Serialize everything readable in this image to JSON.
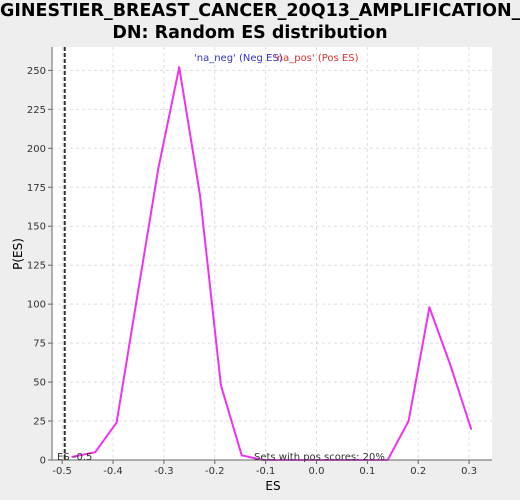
{
  "chart_data": {
    "type": "line",
    "title_line1": "GINESTIER_BREAST_CANCER_20Q13_AMPLIFICATION_",
    "title_line2": "DN: Random ES distribution",
    "xlabel": "ES",
    "ylabel": "P(ES)",
    "xlim": [
      -0.52,
      0.345
    ],
    "ylim": [
      0,
      265
    ],
    "x_ticks": [
      -0.5,
      -0.4,
      -0.3,
      -0.2,
      -0.1,
      0.0,
      0.1,
      0.2,
      0.3
    ],
    "x_tick_labels": [
      "-0.5",
      "-0.4",
      "-0.3",
      "-0.2",
      "-0.1",
      "0.0",
      "0.1",
      "0.2",
      "0.3"
    ],
    "y_ticks": [
      0,
      25,
      50,
      75,
      100,
      125,
      150,
      175,
      200,
      225,
      250
    ],
    "y_tick_labels": [
      "0",
      "25",
      "50",
      "75",
      "100",
      "125",
      "150",
      "175",
      "200",
      "225",
      "250"
    ],
    "grid": true,
    "legend": {
      "neg_label": "'na_neg' (Neg ES)",
      "pos_label": "'na_pos' (Pos ES)",
      "neg_color": "#3333cc",
      "pos_color": "#dd3333",
      "placement": "top-center"
    },
    "series": [
      {
        "color": "#ee33ee",
        "x": [
          -0.48,
          -0.435,
          -0.393,
          -0.352,
          -0.311,
          -0.27,
          -0.229,
          -0.188,
          -0.147,
          -0.106,
          -0.065,
          -0.024,
          0.017,
          0.058,
          0.099,
          0.14,
          0.181,
          0.222,
          0.263,
          0.304
        ],
        "y": [
          2,
          5,
          24,
          106,
          187,
          252,
          170,
          48,
          3,
          0,
          0,
          0,
          0,
          0,
          0,
          0,
          25,
          98,
          61,
          20
        ]
      }
    ],
    "es_marker": {
      "x": -0.495,
      "label": "ES -0.5"
    },
    "annotation": {
      "text": "Sets with pos scores: 20%"
    }
  }
}
